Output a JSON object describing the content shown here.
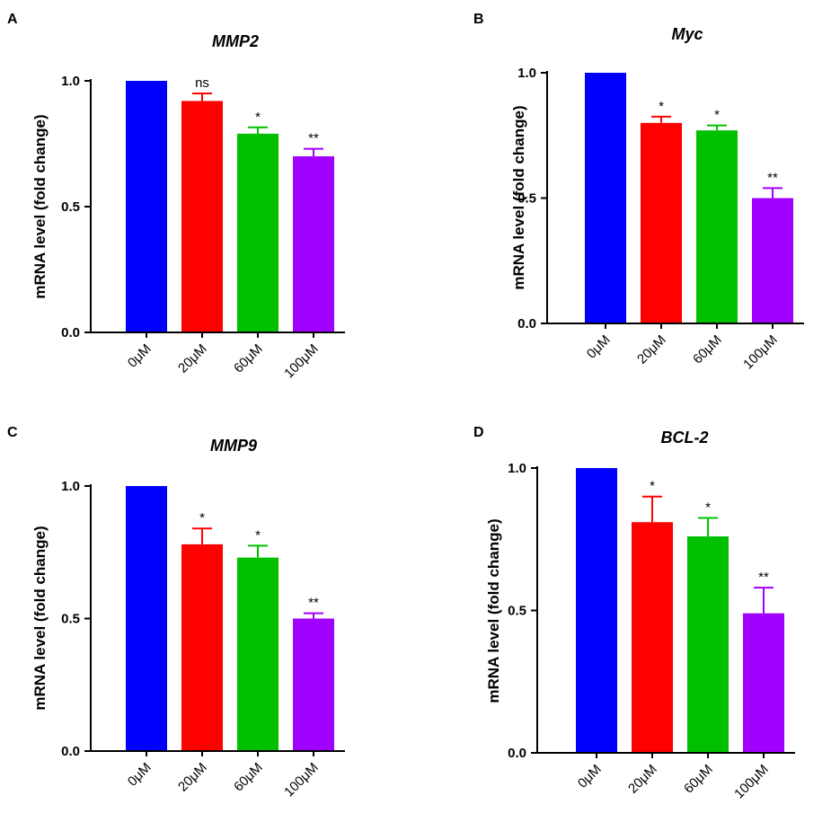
{
  "chart_data": [
    {
      "panel": "A",
      "type": "bar",
      "title": "MMP2",
      "ylabel": "mRNA level (fold change)",
      "xlabel": "",
      "ylim": [
        0,
        1.0
      ],
      "yticks": [
        "0.0",
        "0.5",
        "1.0"
      ],
      "categories": [
        "0μM",
        "20μM",
        "60μM",
        "100μM"
      ],
      "values": [
        1.0,
        0.92,
        0.79,
        0.7
      ],
      "errors": [
        0.0,
        0.03,
        0.025,
        0.03
      ],
      "significance": [
        "",
        "ns",
        "*",
        "**"
      ],
      "colors": [
        "#0000ff",
        "#ff0000",
        "#00c000",
        "#a000ff"
      ]
    },
    {
      "panel": "B",
      "type": "bar",
      "title": "Myc",
      "ylabel": "mRNA level (fold change)",
      "xlabel": "",
      "ylim": [
        0,
        1.0
      ],
      "yticks": [
        "0.0",
        "0.5",
        "1.0"
      ],
      "categories": [
        "0μM",
        "20μM",
        "60μM",
        "100μM"
      ],
      "values": [
        1.0,
        0.8,
        0.77,
        0.5
      ],
      "errors": [
        0.0,
        0.025,
        0.02,
        0.04
      ],
      "significance": [
        "",
        "*",
        "*",
        "**"
      ],
      "colors": [
        "#0000ff",
        "#ff0000",
        "#00c000",
        "#a000ff"
      ]
    },
    {
      "panel": "C",
      "type": "bar",
      "title": "MMP9",
      "ylabel": "mRNA level (fold change)",
      "xlabel": "",
      "ylim": [
        0,
        1.0
      ],
      "yticks": [
        "0.0",
        "0.5",
        "1.0"
      ],
      "categories": [
        "0μM",
        "20μM",
        "60μM",
        "100μM"
      ],
      "values": [
        1.0,
        0.78,
        0.73,
        0.5
      ],
      "errors": [
        0.0,
        0.06,
        0.045,
        0.02
      ],
      "significance": [
        "",
        "*",
        "*",
        "**"
      ],
      "colors": [
        "#0000ff",
        "#ff0000",
        "#00c000",
        "#a000ff"
      ]
    },
    {
      "panel": "D",
      "type": "bar",
      "title": "BCL-2",
      "ylabel": "mRNA level (fold change)",
      "xlabel": "",
      "ylim": [
        0,
        1.0
      ],
      "yticks": [
        "0.0",
        "0.5",
        "1.0"
      ],
      "categories": [
        "0μM",
        "20μM",
        "60μM",
        "100μM"
      ],
      "values": [
        1.0,
        0.81,
        0.76,
        0.49
      ],
      "errors": [
        0.0,
        0.09,
        0.065,
        0.09
      ],
      "significance": [
        "",
        "*",
        "*",
        "**"
      ],
      "colors": [
        "#0000ff",
        "#ff0000",
        "#00c000",
        "#a000ff"
      ]
    }
  ]
}
